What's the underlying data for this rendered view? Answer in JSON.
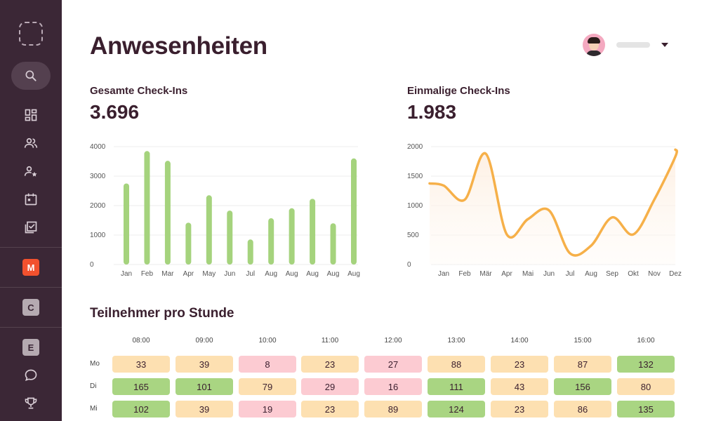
{
  "header": {
    "title": "Anwesenheiten"
  },
  "sidebar": {
    "workspace_badges": [
      "M",
      "C",
      "E"
    ]
  },
  "stats": {
    "total": {
      "label": "Gesamte Check-Ins",
      "value": "3.696"
    },
    "unique": {
      "label": "Einmalige Check-Ins",
      "value": "1.983"
    }
  },
  "colors": {
    "sidebar_bg": "#3b2736",
    "bar_green": "#a5d37d",
    "line_orange": "#f6b049",
    "cell_green": "#a9d582",
    "cell_orange": "#fde0b1",
    "cell_pink": "#fccbd2"
  },
  "chart_data": [
    {
      "type": "bar",
      "categories": [
        "Jan",
        "Feb",
        "Mar",
        "Apr",
        "May",
        "Jun",
        "Jul",
        "Aug",
        "Aug",
        "Aug",
        "Aug",
        "Aug"
      ],
      "values": [
        2750,
        3850,
        3520,
        1420,
        2350,
        1830,
        850,
        1570,
        1910,
        2230,
        1400,
        3600
      ],
      "ylim": [
        0,
        4000
      ],
      "yticks": [
        "0",
        "1000",
        "2000",
        "3000",
        "4000"
      ],
      "grid": true
    },
    {
      "type": "area",
      "categories": [
        "Jan",
        "Feb",
        "Mär",
        "Apr",
        "Mai",
        "Jun",
        "Jul",
        "Aug",
        "Sep",
        "Okt",
        "Nov",
        "Dez"
      ],
      "values": [
        1340,
        1100,
        1880,
        510,
        770,
        920,
        190,
        320,
        800,
        510,
        1100,
        1830
      ],
      "ylim": [
        0,
        2000
      ],
      "yticks": [
        "0",
        "500",
        "1000",
        "1500",
        "2000"
      ],
      "grid": true
    }
  ],
  "heatmap": {
    "title": "Teilnehmer pro Stunde",
    "hours": [
      "08:00",
      "09:00",
      "10:00",
      "11:00",
      "12:00",
      "13:00",
      "14:00",
      "15:00",
      "16:00"
    ],
    "rows": [
      {
        "day": "Mo",
        "values": [
          "33",
          "39",
          "8",
          "23",
          "27",
          "88",
          "23",
          "87",
          "132"
        ],
        "levels": [
          "orange",
          "orange",
          "pink",
          "orange",
          "pink",
          "orange",
          "orange",
          "orange",
          "green"
        ]
      },
      {
        "day": "Di",
        "values": [
          "165",
          "101",
          "79",
          "29",
          "16",
          "111",
          "43",
          "156",
          "80"
        ],
        "levels": [
          "green",
          "green",
          "orange",
          "pink",
          "pink",
          "green",
          "orange",
          "green",
          "orange"
        ]
      },
      {
        "day": "Mi",
        "values": [
          "102",
          "39",
          "19",
          "23",
          "89",
          "124",
          "23",
          "86",
          "135"
        ],
        "levels": [
          "green",
          "orange",
          "pink",
          "orange",
          "orange",
          "green",
          "orange",
          "orange",
          "green"
        ]
      }
    ]
  }
}
